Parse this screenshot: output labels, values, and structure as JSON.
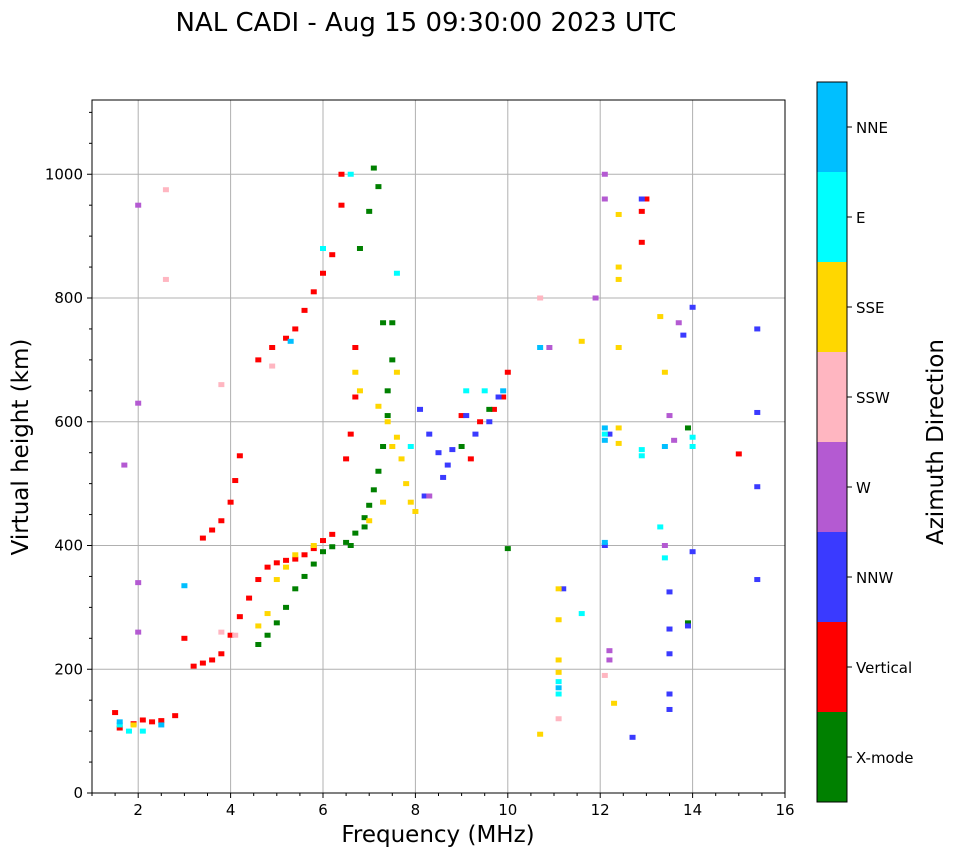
{
  "chart_data": {
    "type": "scatter",
    "title": "NAL CADI - Aug 15 09:30:00 2023 UTC",
    "xlabel": "Frequency (MHz)",
    "ylabel": "Virtual height (km)",
    "xlim": [
      1,
      16
    ],
    "ylim": [
      0,
      1120
    ],
    "xticks": [
      2,
      4,
      6,
      8,
      10,
      12,
      14,
      16
    ],
    "yticks": [
      0,
      200,
      400,
      600,
      800,
      1000
    ],
    "grid": true,
    "colorbar": {
      "label": "Azimuth Direction",
      "categories": [
        {
          "name": "X-mode",
          "color": "#008000"
        },
        {
          "name": "Vertical",
          "color": "#ff0000"
        },
        {
          "name": "NNW",
          "color": "#3a3aff"
        },
        {
          "name": "W",
          "color": "#b45ad2"
        },
        {
          "name": "SSW",
          "color": "#ffb6c1"
        },
        {
          "name": "SSE",
          "color": "#ffd700"
        },
        {
          "name": "E",
          "color": "#00ffff"
        },
        {
          "name": "NNE",
          "color": "#00bfff"
        }
      ]
    },
    "series": [
      {
        "name": "Vertical",
        "points": [
          [
            1.5,
            130
          ],
          [
            1.6,
            105
          ],
          [
            1.9,
            112
          ],
          [
            2.1,
            118
          ],
          [
            2.3,
            115
          ],
          [
            2.5,
            117
          ],
          [
            2.8,
            125
          ],
          [
            3.0,
            250
          ],
          [
            3.2,
            205
          ],
          [
            3.4,
            210
          ],
          [
            3.6,
            215
          ],
          [
            3.8,
            225
          ],
          [
            4.0,
            255
          ],
          [
            4.2,
            285
          ],
          [
            4.4,
            315
          ],
          [
            4.6,
            345
          ],
          [
            4.8,
            365
          ],
          [
            5.0,
            372
          ],
          [
            5.2,
            376
          ],
          [
            5.4,
            378
          ],
          [
            5.6,
            385
          ],
          [
            5.8,
            395
          ],
          [
            6.0,
            408
          ],
          [
            6.2,
            418
          ],
          [
            3.4,
            412
          ],
          [
            3.6,
            425
          ],
          [
            3.8,
            440
          ],
          [
            4.0,
            470
          ],
          [
            4.1,
            505
          ],
          [
            4.2,
            545
          ],
          [
            4.6,
            700
          ],
          [
            4.9,
            720
          ],
          [
            5.2,
            735
          ],
          [
            5.4,
            750
          ],
          [
            5.6,
            780
          ],
          [
            5.8,
            810
          ],
          [
            6.0,
            840
          ],
          [
            6.2,
            870
          ],
          [
            6.4,
            1000
          ],
          [
            6.4,
            950
          ],
          [
            6.5,
            540
          ],
          [
            6.6,
            580
          ],
          [
            6.7,
            640
          ],
          [
            6.7,
            720
          ],
          [
            12.9,
            890
          ],
          [
            12.9,
            940
          ],
          [
            13.0,
            960
          ],
          [
            15.0,
            548
          ],
          [
            9.2,
            540
          ],
          [
            9.4,
            600
          ],
          [
            9.0,
            610
          ],
          [
            9.7,
            620
          ],
          [
            10.0,
            680
          ],
          [
            9.9,
            640
          ]
        ]
      },
      {
        "name": "X-mode",
        "points": [
          [
            4.6,
            240
          ],
          [
            4.8,
            255
          ],
          [
            5.0,
            275
          ],
          [
            5.2,
            300
          ],
          [
            5.4,
            330
          ],
          [
            5.6,
            350
          ],
          [
            5.8,
            370
          ],
          [
            6.0,
            390
          ],
          [
            6.2,
            398
          ],
          [
            6.5,
            405
          ],
          [
            6.7,
            420
          ],
          [
            6.9,
            445
          ],
          [
            7.0,
            465
          ],
          [
            7.1,
            490
          ],
          [
            7.2,
            520
          ],
          [
            7.3,
            560
          ],
          [
            7.4,
            610
          ],
          [
            7.4,
            650
          ],
          [
            7.5,
            700
          ],
          [
            7.5,
            760
          ],
          [
            7.3,
            760
          ],
          [
            7.2,
            980
          ],
          [
            7.1,
            1010
          ],
          [
            7.0,
            940
          ],
          [
            6.8,
            880
          ],
          [
            9.0,
            560
          ],
          [
            9.6,
            620
          ],
          [
            13.9,
            275
          ],
          [
            13.9,
            590
          ],
          [
            10.0,
            395
          ],
          [
            6.6,
            400
          ],
          [
            6.9,
            430
          ]
        ]
      },
      {
        "name": "NNW",
        "points": [
          [
            8.1,
            620
          ],
          [
            8.3,
            580
          ],
          [
            8.5,
            550
          ],
          [
            8.7,
            530
          ],
          [
            9.1,
            610
          ],
          [
            9.3,
            580
          ],
          [
            9.6,
            600
          ],
          [
            9.8,
            640
          ],
          [
            8.2,
            480
          ],
          [
            8.6,
            510
          ],
          [
            12.7,
            90
          ],
          [
            13.5,
            265
          ],
          [
            13.5,
            325
          ],
          [
            13.5,
            225
          ],
          [
            13.5,
            160
          ],
          [
            13.5,
            135
          ],
          [
            13.9,
            270
          ],
          [
            14.0,
            390
          ],
          [
            13.8,
            740
          ],
          [
            14.0,
            785
          ],
          [
            15.4,
            750
          ],
          [
            15.4,
            615
          ],
          [
            15.4,
            495
          ],
          [
            15.4,
            345
          ],
          [
            11.2,
            330
          ],
          [
            12.1,
            400
          ],
          [
            12.2,
            580
          ],
          [
            12.9,
            960
          ],
          [
            8.8,
            555
          ]
        ]
      },
      {
        "name": "W",
        "points": [
          [
            2.0,
            950
          ],
          [
            2.0,
            630
          ],
          [
            2.0,
            340
          ],
          [
            2.0,
            260
          ],
          [
            1.7,
            530
          ],
          [
            12.1,
            1000
          ],
          [
            12.1,
            960
          ],
          [
            12.2,
            230
          ],
          [
            12.2,
            215
          ],
          [
            11.9,
            800
          ],
          [
            13.5,
            610
          ],
          [
            13.7,
            760
          ],
          [
            13.6,
            570
          ],
          [
            10.9,
            720
          ],
          [
            8.3,
            480
          ],
          [
            13.4,
            400
          ]
        ]
      },
      {
        "name": "SSW",
        "points": [
          [
            2.6,
            975
          ],
          [
            3.8,
            260
          ],
          [
            4.1,
            255
          ],
          [
            4.9,
            690
          ],
          [
            10.7,
            800
          ],
          [
            11.1,
            120
          ],
          [
            12.1,
            190
          ],
          [
            3.8,
            660
          ],
          [
            2.6,
            830
          ]
        ]
      },
      {
        "name": "SSE",
        "points": [
          [
            7.2,
            625
          ],
          [
            7.4,
            600
          ],
          [
            7.6,
            575
          ],
          [
            7.7,
            540
          ],
          [
            7.8,
            500
          ],
          [
            7.9,
            470
          ],
          [
            8.0,
            455
          ],
          [
            7.5,
            560
          ],
          [
            7.3,
            470
          ],
          [
            7.0,
            440
          ],
          [
            6.8,
            650
          ],
          [
            6.7,
            680
          ],
          [
            7.6,
            680
          ],
          [
            4.6,
            270
          ],
          [
            4.8,
            290
          ],
          [
            5.0,
            345
          ],
          [
            5.2,
            365
          ],
          [
            5.4,
            385
          ],
          [
            5.8,
            400
          ],
          [
            11.1,
            330
          ],
          [
            11.1,
            280
          ],
          [
            11.1,
            215
          ],
          [
            11.1,
            195
          ],
          [
            12.4,
            850
          ],
          [
            12.4,
            830
          ],
          [
            12.4,
            935
          ],
          [
            12.4,
            590
          ],
          [
            12.4,
            565
          ],
          [
            12.4,
            720
          ],
          [
            13.4,
            680
          ],
          [
            13.3,
            770
          ],
          [
            11.6,
            730
          ],
          [
            10.7,
            95
          ],
          [
            12.3,
            145
          ],
          [
            1.9,
            110
          ]
        ]
      },
      {
        "name": "E",
        "points": [
          [
            1.6,
            110
          ],
          [
            1.8,
            100
          ],
          [
            2.1,
            100
          ],
          [
            11.1,
            160
          ],
          [
            11.1,
            180
          ],
          [
            12.1,
            580
          ],
          [
            12.9,
            555
          ],
          [
            12.9,
            545
          ],
          [
            13.4,
            380
          ],
          [
            13.3,
            430
          ],
          [
            14.0,
            560
          ],
          [
            14.0,
            575
          ],
          [
            9.1,
            650
          ],
          [
            9.5,
            650
          ],
          [
            7.9,
            560
          ],
          [
            6.0,
            880
          ],
          [
            6.6,
            1000
          ],
          [
            7.6,
            840
          ],
          [
            11.6,
            290
          ]
        ]
      },
      {
        "name": "NNE",
        "points": [
          [
            1.6,
            115
          ],
          [
            2.5,
            110
          ],
          [
            3.0,
            335
          ],
          [
            5.3,
            730
          ],
          [
            10.7,
            720
          ],
          [
            12.1,
            590
          ],
          [
            12.1,
            570
          ],
          [
            12.1,
            405
          ],
          [
            11.1,
            170
          ],
          [
            13.4,
            560
          ],
          [
            9.9,
            650
          ]
        ]
      }
    ]
  }
}
